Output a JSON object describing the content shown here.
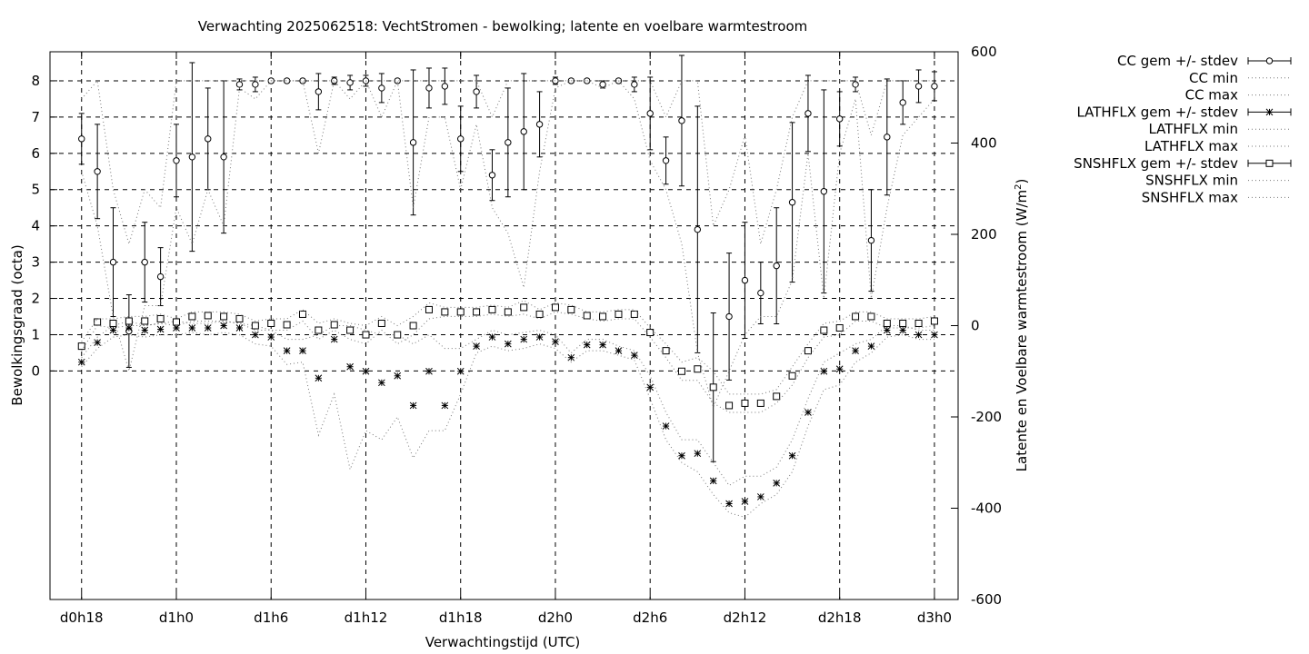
{
  "chart_data": {
    "type": "line",
    "title": "Verwachting 2025062518: VechtStromen - bewolking; latente en voelbare warmtestroom",
    "xlabel": "Verwachtingstijd (UTC)",
    "ylabel": "Bewolkingsgraad (octa)",
    "y2label_prefix": "Latente en Voelbare warmtestroom (W/m",
    "y2label_sup": "2",
    "y2label_suffix": ")",
    "xlim": [
      16,
      73.5
    ],
    "ylim": [
      -6.3,
      8.8
    ],
    "y2lim": [
      -600,
      600
    ],
    "grid": true,
    "legend_position": "outside-right",
    "x_ticks": [
      {
        "x": 18,
        "label": "d0h18"
      },
      {
        "x": 24,
        "label": "d1h0"
      },
      {
        "x": 30,
        "label": "d1h6"
      },
      {
        "x": 36,
        "label": "d1h12"
      },
      {
        "x": 42,
        "label": "d1h18"
      },
      {
        "x": 48,
        "label": "d2h0"
      },
      {
        "x": 54,
        "label": "d2h6"
      },
      {
        "x": 60,
        "label": "d2h12"
      },
      {
        "x": 66,
        "label": "d2h18"
      },
      {
        "x": 72,
        "label": "d3h0"
      }
    ],
    "y_ticks": [
      "0",
      "1",
      "2",
      "3",
      "4",
      "5",
      "6",
      "7",
      "8"
    ],
    "y2_ticks": [
      "-600",
      "-400",
      "-200",
      "0",
      "200",
      "400",
      "600"
    ],
    "x": [
      18,
      19,
      20,
      21,
      22,
      23,
      24,
      25,
      26,
      27,
      28,
      29,
      30,
      31,
      32,
      33,
      34,
      35,
      36,
      37,
      38,
      39,
      40,
      41,
      42,
      43,
      44,
      45,
      46,
      47,
      48,
      49,
      50,
      51,
      52,
      53,
      54,
      55,
      56,
      57,
      58,
      59,
      60,
      61,
      62,
      63,
      64,
      65,
      66,
      67,
      68,
      69,
      70,
      71,
      72
    ],
    "series": [
      {
        "name": "CC gem +/- stdev",
        "axis": "y1",
        "marker": "circle",
        "values": [
          6.4,
          5.5,
          3.0,
          1.1,
          3.0,
          2.6,
          5.8,
          5.9,
          6.4,
          5.9,
          7.9,
          7.9,
          8.0,
          8.0,
          8.0,
          7.7,
          8.0,
          7.95,
          8.0,
          7.8,
          8.0,
          6.3,
          7.8,
          7.85,
          6.4,
          7.7,
          5.4,
          6.3,
          6.6,
          6.8,
          8.0,
          8.0,
          8.0,
          7.9,
          8.0,
          7.9,
          7.1,
          5.8,
          6.9,
          3.9,
          -0.45,
          1.5,
          2.5,
          2.15,
          2.9,
          4.65,
          7.1,
          4.95,
          6.95,
          7.9,
          3.6,
          6.45,
          7.4,
          7.85,
          7.85
        ],
        "stdev": [
          0.7,
          1.3,
          1.5,
          1.0,
          1.1,
          0.8,
          1.0,
          2.6,
          1.4,
          2.1,
          0.15,
          0.2,
          0.05,
          0.05,
          0.05,
          0.5,
          0.1,
          0.2,
          0.15,
          0.4,
          0.05,
          2.0,
          0.55,
          0.5,
          0.9,
          0.45,
          0.7,
          1.5,
          1.6,
          0.9,
          0.1,
          0.05,
          0.05,
          0.1,
          0.05,
          0.2,
          1.0,
          0.65,
          1.8,
          3.4,
          2.05,
          1.75,
          1.6,
          0.85,
          1.6,
          2.2,
          1.05,
          2.8,
          0.75,
          0.2,
          1.4,
          1.6,
          0.6,
          0.45,
          0.4
        ]
      },
      {
        "name": "CC min",
        "axis": "y1",
        "style": "dotted",
        "values": [
          5.5,
          4.0,
          1.5,
          0.0,
          1.8,
          1.8,
          4.5,
          3.5,
          5.0,
          4.0,
          7.8,
          7.5,
          8.0,
          8.0,
          8.0,
          6.0,
          8.0,
          7.5,
          8.0,
          7.0,
          8.0,
          4.5,
          7.0,
          7.0,
          5.0,
          6.8,
          4.5,
          3.8,
          2.3,
          5.5,
          7.8,
          8.0,
          8.0,
          7.8,
          8.0,
          7.5,
          5.8,
          5.0,
          3.5,
          0.5,
          -1.0,
          0.0,
          1.0,
          1.5,
          1.5,
          2.5,
          6.0,
          2.0,
          6.0,
          7.5,
          2.0,
          4.5,
          6.5,
          7.0,
          7.5
        ]
      },
      {
        "name": "CC max",
        "axis": "y1",
        "style": "dotted",
        "values": [
          7.5,
          8.0,
          5.0,
          3.5,
          5.0,
          4.5,
          8.0,
          8.0,
          8.0,
          8.0,
          8.0,
          8.0,
          8.0,
          8.0,
          8.0,
          8.0,
          8.0,
          8.0,
          8.0,
          8.0,
          8.0,
          8.0,
          8.0,
          8.0,
          8.0,
          8.0,
          7.0,
          8.0,
          8.0,
          8.0,
          8.0,
          8.0,
          8.0,
          8.0,
          8.0,
          8.0,
          8.0,
          7.0,
          8.0,
          8.0,
          4.0,
          5.0,
          6.5,
          3.5,
          5.0,
          7.0,
          8.0,
          8.0,
          8.0,
          8.0,
          6.5,
          8.0,
          8.0,
          8.0,
          8.0
        ]
      },
      {
        "name": "LATHFLX gem +/- stdev",
        "axis": "y2",
        "marker": "star",
        "values": [
          -80,
          -37,
          -10,
          -5,
          -10,
          -8,
          -5,
          -5,
          -5,
          0,
          -5,
          -20,
          -25,
          -55,
          -55,
          -115,
          -30,
          -90,
          -100,
          -125,
          -110,
          -175,
          -100,
          -175,
          -100,
          -45,
          -25,
          -40,
          -30,
          -25,
          -35,
          -70,
          -42,
          -42,
          -55,
          -65,
          -135,
          -220,
          -285,
          -280,
          -340,
          -390,
          -385,
          -375,
          -345,
          -285,
          -190,
          -100,
          -95,
          -55,
          -45,
          -10,
          -10,
          -20,
          -20
        ]
      },
      {
        "name": "LATHFLX min",
        "axis": "y2",
        "style": "dotted",
        "values": [
          -90,
          -50,
          -25,
          -20,
          -25,
          -20,
          -20,
          -15,
          -20,
          -15,
          -20,
          -40,
          -45,
          -85,
          -80,
          -240,
          -150,
          -315,
          -230,
          -250,
          -200,
          -290,
          -230,
          -230,
          -150,
          -60,
          -45,
          -55,
          -50,
          -40,
          -50,
          -80,
          -55,
          -55,
          -65,
          -75,
          -160,
          -250,
          -300,
          -320,
          -370,
          -410,
          -420,
          -390,
          -370,
          -320,
          -220,
          -140,
          -130,
          -80,
          -60,
          -25,
          -20,
          -30,
          -30
        ]
      },
      {
        "name": "LATHFLX max",
        "axis": "y2",
        "style": "dotted",
        "values": [
          -70,
          -25,
          0,
          10,
          0,
          5,
          10,
          5,
          5,
          10,
          5,
          0,
          -10,
          -30,
          -30,
          -20,
          0,
          0,
          -10,
          -20,
          -20,
          -40,
          -20,
          -50,
          -50,
          -30,
          -10,
          -20,
          -15,
          -10,
          -20,
          -60,
          -30,
          -30,
          -45,
          -55,
          -110,
          -190,
          -250,
          -250,
          -300,
          -350,
          -330,
          -330,
          -310,
          -250,
          -160,
          -80,
          -60,
          -40,
          -30,
          0,
          0,
          -10,
          -10
        ]
      },
      {
        "name": "SNSHFLX gem +/- stdev",
        "axis": "y2",
        "marker": "square",
        "values": [
          -45,
          8,
          5,
          10,
          10,
          15,
          8,
          20,
          22,
          20,
          15,
          0,
          5,
          2,
          25,
          -10,
          2,
          -10,
          -20,
          5,
          -20,
          0,
          35,
          30,
          30,
          30,
          35,
          30,
          40,
          25,
          40,
          35,
          22,
          20,
          25,
          25,
          -15,
          -55,
          -100,
          -95,
          -135,
          -175,
          -170,
          -170,
          -155,
          -110,
          -55,
          -10,
          -5,
          20,
          20,
          5,
          5,
          5,
          10
        ]
      },
      {
        "name": "SNSHFLX min",
        "axis": "y2",
        "style": "dotted",
        "values": [
          -55,
          0,
          -5,
          0,
          0,
          5,
          0,
          10,
          10,
          10,
          5,
          -10,
          -10,
          -10,
          10,
          -30,
          -10,
          -30,
          -40,
          -10,
          -40,
          -20,
          15,
          20,
          20,
          20,
          25,
          20,
          25,
          15,
          30,
          25,
          15,
          10,
          15,
          15,
          -25,
          -70,
          -120,
          -120,
          -170,
          -190,
          -190,
          -190,
          -170,
          -130,
          -70,
          -25,
          -20,
          10,
          10,
          -5,
          -5,
          -5,
          0
        ]
      },
      {
        "name": "SNSHFLX max",
        "axis": "y2",
        "style": "dotted",
        "values": [
          -35,
          15,
          15,
          20,
          20,
          25,
          15,
          30,
          30,
          30,
          25,
          10,
          15,
          15,
          35,
          5,
          15,
          5,
          0,
          20,
          0,
          20,
          50,
          40,
          40,
          40,
          45,
          40,
          55,
          35,
          50,
          45,
          30,
          30,
          35,
          35,
          -5,
          -40,
          -80,
          -70,
          -100,
          -150,
          -150,
          -150,
          -140,
          -90,
          -40,
          5,
          10,
          30,
          30,
          15,
          15,
          15,
          20
        ]
      }
    ]
  }
}
